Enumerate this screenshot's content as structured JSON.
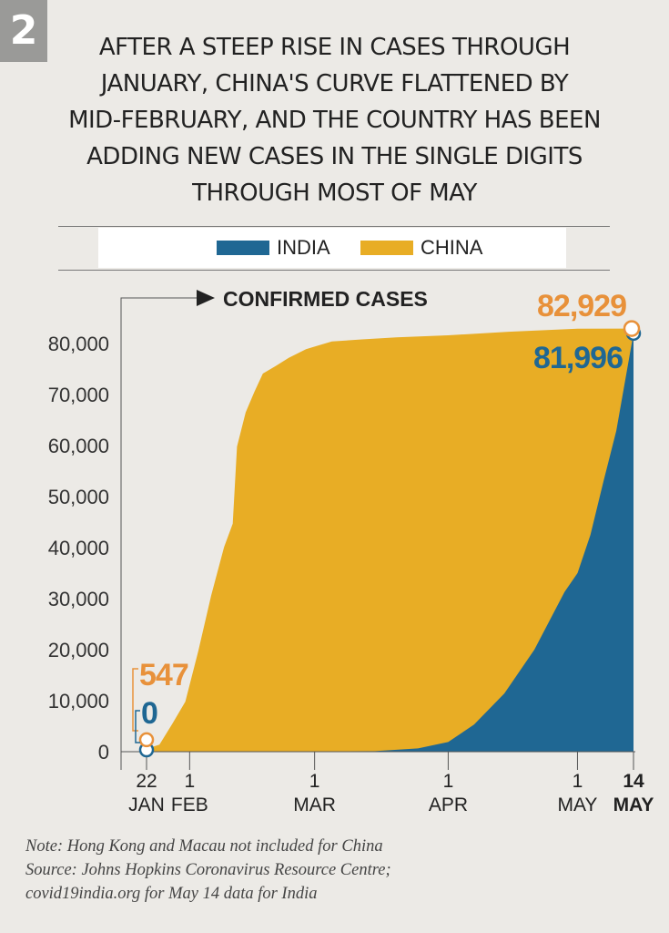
{
  "badge": "2",
  "headline": [
    "AFTER A STEEP RISE IN CASES THROUGH",
    "JANUARY, CHINA'S CURVE FLATTENED BY",
    "MID-FEBRUARY, AND THE COUNTRY HAS BEEN",
    "ADDING NEW CASES IN THE SINGLE DIGITS",
    "THROUGH MOST OF MAY"
  ],
  "legend": [
    {
      "label": "INDIA",
      "color": "#1f6793"
    },
    {
      "label": "CHINA",
      "color": "#e8ad25"
    }
  ],
  "notes": [
    "Note: Hong Kong and Macau not included for China",
    "Source: Johns Hopkins Coronavirus Resource Centre;",
    "covid19india.org for May 14 data for India"
  ],
  "chart_data": {
    "type": "area",
    "ylabel": "CONFIRMED CASES",
    "ylim": [
      0,
      84000
    ],
    "yticks": [
      0,
      10000,
      20000,
      30000,
      40000,
      50000,
      60000,
      70000,
      80000
    ],
    "ytick_labels": [
      "0",
      "10,000",
      "20,000",
      "30,000",
      "40,000",
      "50,000",
      "60,000",
      "70,000",
      "80,000"
    ],
    "x_range": [
      "2020-01-22",
      "2020-05-14"
    ],
    "xticks": [
      {
        "date": "2020-01-22",
        "top": "22",
        "bottom": "JAN",
        "bold": false
      },
      {
        "date": "2020-02-01",
        "top": "1",
        "bottom": "FEB",
        "bold": false
      },
      {
        "date": "2020-03-01",
        "top": "1",
        "bottom": "MAR",
        "bold": false
      },
      {
        "date": "2020-04-01",
        "top": "1",
        "bottom": "APR",
        "bold": false
      },
      {
        "date": "2020-05-01",
        "top": "1",
        "bottom": "MAY",
        "bold": false
      },
      {
        "date": "2020-05-14",
        "top": "14",
        "bottom": "MAY",
        "bold": true
      }
    ],
    "series": [
      {
        "name": "CHINA",
        "color": "#e8ad25",
        "points": [
          [
            "2020-01-22",
            547
          ],
          [
            "2020-01-25",
            1400
          ],
          [
            "2020-01-28",
            5500
          ],
          [
            "2020-01-31",
            9800
          ],
          [
            "2020-02-03",
            19700
          ],
          [
            "2020-02-06",
            30600
          ],
          [
            "2020-02-09",
            40100
          ],
          [
            "2020-02-11",
            44700
          ],
          [
            "2020-02-12",
            59800
          ],
          [
            "2020-02-14",
            66500
          ],
          [
            "2020-02-16",
            70500
          ],
          [
            "2020-02-18",
            74100
          ],
          [
            "2020-02-21",
            75600
          ],
          [
            "2020-02-24",
            77200
          ],
          [
            "2020-02-28",
            78900
          ],
          [
            "2020-03-05",
            80400
          ],
          [
            "2020-03-12",
            80800
          ],
          [
            "2020-03-20",
            81200
          ],
          [
            "2020-04-01",
            81600
          ],
          [
            "2020-04-15",
            82300
          ],
          [
            "2020-05-01",
            82900
          ],
          [
            "2020-05-14",
            82929
          ]
        ]
      },
      {
        "name": "INDIA",
        "color": "#1f6793",
        "points": [
          [
            "2020-01-22",
            0
          ],
          [
            "2020-03-15",
            110
          ],
          [
            "2020-03-25",
            650
          ],
          [
            "2020-04-01",
            1900
          ],
          [
            "2020-04-07",
            5300
          ],
          [
            "2020-04-14",
            11400
          ],
          [
            "2020-04-21",
            20000
          ],
          [
            "2020-04-28",
            31300
          ],
          [
            "2020-05-01",
            35000
          ],
          [
            "2020-05-04",
            42500
          ],
          [
            "2020-05-07",
            52900
          ],
          [
            "2020-05-10",
            62900
          ],
          [
            "2020-05-14",
            81996
          ]
        ]
      }
    ],
    "annotations": [
      {
        "text": "547",
        "series": "CHINA",
        "color": "#e8913a"
      },
      {
        "text": "0",
        "series": "INDIA",
        "color": "#1f6793"
      },
      {
        "text": "82,929",
        "series": "CHINA",
        "color": "#e8913a"
      },
      {
        "text": "81,996",
        "series": "INDIA",
        "color": "#1f6793"
      }
    ]
  }
}
